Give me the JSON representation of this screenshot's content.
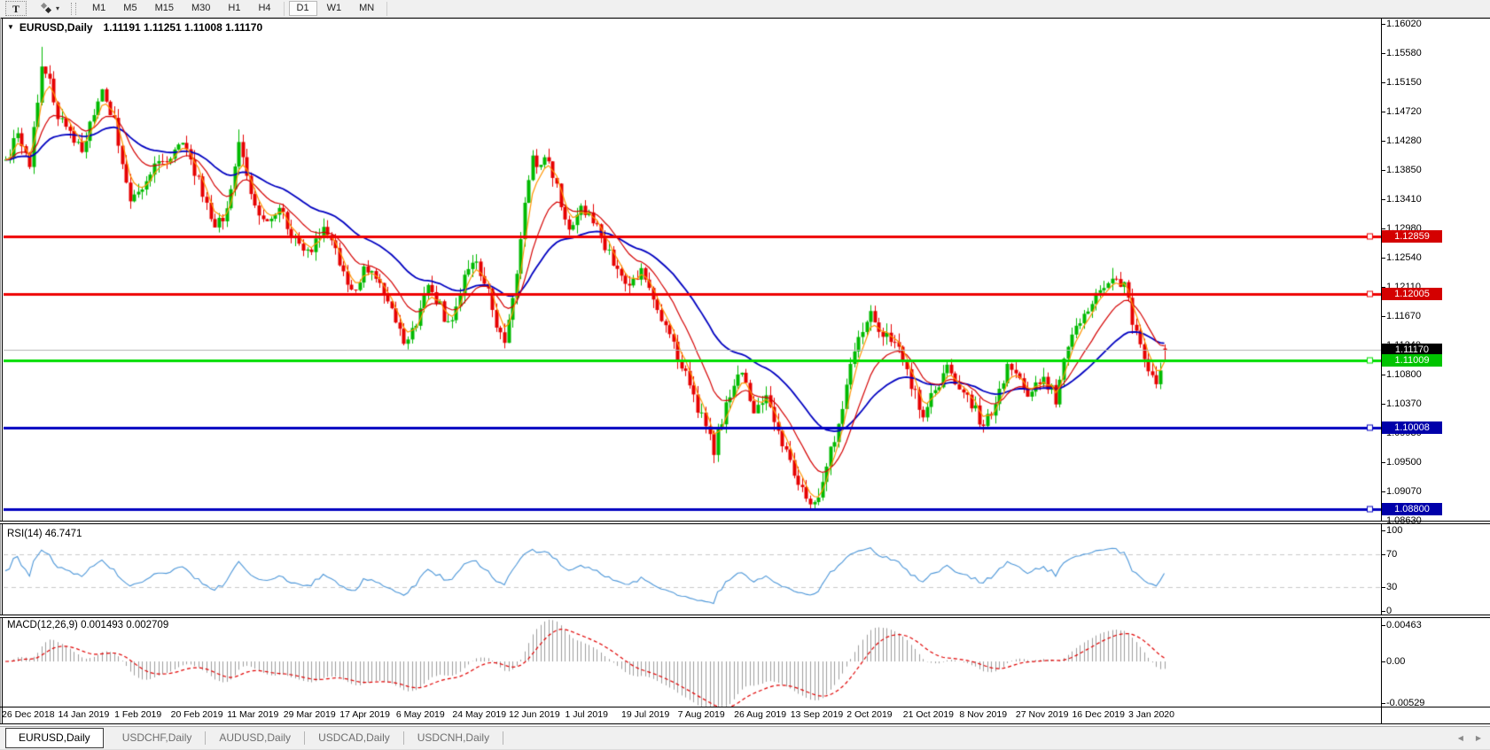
{
  "toolbar": {
    "text_tool_label": "T",
    "timeframes": [
      "M1",
      "M5",
      "M15",
      "M30",
      "H1",
      "H4",
      "D1",
      "W1",
      "MN"
    ],
    "active_timeframe": "D1"
  },
  "chart_header": {
    "collapse_icon": "▼",
    "symbol_period": "EURUSD,Daily",
    "ohlc_text": "1.11191 1.11251 1.11008 1.11170"
  },
  "tabs": {
    "items": [
      {
        "label": "EURUSD,Daily",
        "active": true
      },
      {
        "label": "USDCHF,Daily",
        "active": false
      },
      {
        "label": "AUDUSD,Daily",
        "active": false
      },
      {
        "label": "USDCAD,Daily",
        "active": false
      },
      {
        "label": "USDCNH,Daily",
        "active": false
      }
    ],
    "scroll_left_icon": "◀",
    "scroll_right_icon": "▶"
  },
  "chart_data": {
    "type": "candlestick",
    "symbol": "EURUSD",
    "period": "Daily",
    "ohlc": {
      "open": "1.11191",
      "high": "1.11251",
      "low": "1.11008",
      "close": "1.11170"
    },
    "y_ticks": [
      "1.16020",
      "1.15580",
      "1.15150",
      "1.14720",
      "1.14280",
      "1.13850",
      "1.13410",
      "1.12980",
      "1.12540",
      "1.12110",
      "1.11670",
      "1.11240",
      "1.10800",
      "1.10370",
      "1.09930",
      "1.09500",
      "1.09070",
      "1.08630"
    ],
    "x_ticks": [
      "26 Dec 2018",
      "14 Jan 2019",
      "1 Feb 2019",
      "20 Feb 2019",
      "11 Mar 2019",
      "29 Mar 2019",
      "17 Apr 2019",
      "6 May 2019",
      "24 May 2019",
      "12 Jun 2019",
      "1 Jul 2019",
      "19 Jul 2019",
      "7 Aug 2019",
      "26 Aug 2019",
      "13 Sep 2019",
      "2 Oct 2019",
      "21 Oct 2019",
      "8 Nov 2019",
      "27 Nov 2019",
      "16 Dec 2019",
      "3 Jan 2020"
    ],
    "levels": [
      {
        "label": "1.12859",
        "value": 1.12859,
        "color": "#ee0000",
        "badge_bg": "#d40000",
        "width": 3,
        "bid": false
      },
      {
        "label": "1.12005",
        "value": 1.12005,
        "color": "#ee0000",
        "badge_bg": "#d40000",
        "width": 3,
        "bid": false
      },
      {
        "label": "1.11170",
        "value": 1.1117,
        "color": "#b4b4b4",
        "badge_bg": "#000000",
        "width": 1,
        "bid": true
      },
      {
        "label": "1.11009",
        "value": 1.11009,
        "color": "#00dd00",
        "badge_bg": "#00c400",
        "width": 3,
        "bid": false
      },
      {
        "label": "1.10008",
        "value": 1.10008,
        "color": "#0000c0",
        "badge_bg": "#0000aa",
        "width": 3,
        "bid": false
      },
      {
        "label": "1.08800",
        "value": 1.088,
        "color": "#0000c0",
        "badge_bg": "#0000aa",
        "width": 3,
        "bid": false
      }
    ],
    "indicators": [
      {
        "name": "RSI",
        "label": "RSI(14) 46.7471",
        "y_ticks": [
          "100",
          "70",
          "30",
          "0"
        ],
        "dashed_levels": [
          70,
          30
        ],
        "range": [
          0,
          100
        ]
      },
      {
        "name": "MACD",
        "label": "MACD(12,26,9) 0.001493 0.002709",
        "y_ticks": [
          "0.00463",
          "0.00",
          "-0.00529"
        ]
      }
    ],
    "bars": 289,
    "last_bar": {
      "open": 1.11191,
      "high": 1.11251,
      "low": 1.11008,
      "close": 1.1117
    },
    "waypoints": [
      [
        0,
        1.14
      ],
      [
        3,
        1.1437
      ],
      [
        6,
        1.1392
      ],
      [
        9,
        1.1545
      ],
      [
        11,
        1.1512
      ],
      [
        13,
        1.1468
      ],
      [
        16,
        1.1438
      ],
      [
        19,
        1.1415
      ],
      [
        24,
        1.1498
      ],
      [
        27,
        1.1458
      ],
      [
        31,
        1.1332
      ],
      [
        34,
        1.1355
      ],
      [
        38,
        1.1398
      ],
      [
        44,
        1.1418
      ],
      [
        48,
        1.137
      ],
      [
        52,
        1.1292
      ],
      [
        55,
        1.133
      ],
      [
        58,
        1.142
      ],
      [
        61,
        1.1348
      ],
      [
        64,
        1.1302
      ],
      [
        68,
        1.133
      ],
      [
        71,
        1.129
      ],
      [
        75,
        1.1262
      ],
      [
        79,
        1.1298
      ],
      [
        83,
        1.125
      ],
      [
        86,
        1.12
      ],
      [
        89,
        1.124
      ],
      [
        92,
        1.122
      ],
      [
        96,
        1.1178
      ],
      [
        99,
        1.113
      ],
      [
        102,
        1.116
      ],
      [
        105,
        1.1218
      ],
      [
        108,
        1.118
      ],
      [
        110,
        1.115
      ],
      [
        113,
        1.1208
      ],
      [
        116,
        1.125
      ],
      [
        119,
        1.122
      ],
      [
        122,
        1.116
      ],
      [
        124,
        1.1135
      ],
      [
        127,
        1.1225
      ],
      [
        129,
        1.133
      ],
      [
        131,
        1.1412
      ],
      [
        133,
        1.1385
      ],
      [
        135,
        1.1405
      ],
      [
        137,
        1.1355
      ],
      [
        140,
        1.1302
      ],
      [
        143,
        1.1332
      ],
      [
        146,
        1.131
      ],
      [
        149,
        1.1272
      ],
      [
        152,
        1.1242
      ],
      [
        155,
        1.1205
      ],
      [
        158,
        1.1235
      ],
      [
        161,
        1.1198
      ],
      [
        164,
        1.1152
      ],
      [
        167,
        1.1108
      ],
      [
        170,
        1.1062
      ],
      [
        172,
        1.1032
      ],
      [
        175,
        1.0982
      ],
      [
        176,
        1.0965
      ],
      [
        178,
        1.1015
      ],
      [
        180,
        1.1055
      ],
      [
        183,
        1.1082
      ],
      [
        186,
        1.1022
      ],
      [
        189,
        1.105
      ],
      [
        192,
        1.0995
      ],
      [
        195,
        1.0945
      ],
      [
        198,
        1.0905
      ],
      [
        201,
        1.0888
      ],
      [
        204,
        1.0942
      ],
      [
        207,
        1.101
      ],
      [
        210,
        1.1092
      ],
      [
        213,
        1.1152
      ],
      [
        215,
        1.1165
      ],
      [
        218,
        1.114
      ],
      [
        222,
        1.1118
      ],
      [
        225,
        1.1062
      ],
      [
        228,
        1.1022
      ],
      [
        231,
        1.1055
      ],
      [
        234,
        1.1092
      ],
      [
        237,
        1.106
      ],
      [
        240,
        1.104
      ],
      [
        243,
        1.0998
      ],
      [
        246,
        1.1045
      ],
      [
        249,
        1.1092
      ],
      [
        252,
        1.1065
      ],
      [
        255,
        1.105
      ],
      [
        258,
        1.1078
      ],
      [
        261,
        1.1045
      ],
      [
        264,
        1.1125
      ],
      [
        267,
        1.1165
      ],
      [
        270,
        1.119
      ],
      [
        273,
        1.1218
      ],
      [
        275,
        1.1232
      ],
      [
        278,
        1.1212
      ],
      [
        280,
        1.1162
      ],
      [
        282,
        1.1122
      ],
      [
        284,
        1.1092
      ],
      [
        286,
        1.1075
      ],
      [
        288,
        1.1117
      ]
    ],
    "spikes": [
      [
        9,
        1.1568,
        "h"
      ],
      [
        58,
        1.1445,
        "h"
      ],
      [
        201,
        1.088,
        "l"
      ],
      [
        243,
        1.0994,
        "l"
      ],
      [
        275,
        1.1239,
        "h"
      ]
    ],
    "colors": {
      "up": "#00ba00",
      "down": "#e60000",
      "ma_fast": "#ff9500",
      "ma_mid": "#d40000",
      "ma_slow": "#0000c0",
      "rsi": "#4c96d8",
      "macd_hist": "#9c9c9c",
      "macd_signal": "#e00000",
      "grid_dash": "#c8c8c8"
    }
  }
}
